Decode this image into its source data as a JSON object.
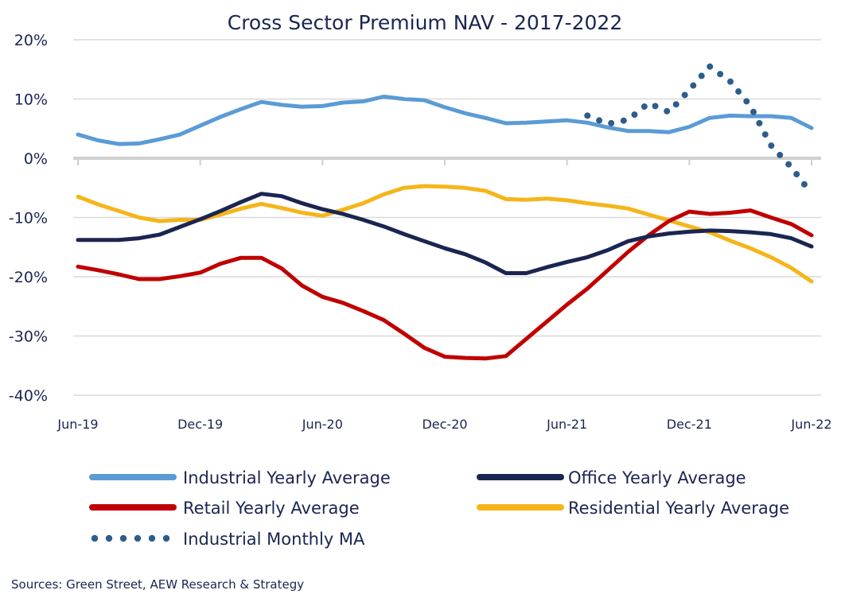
{
  "chart_data": {
    "type": "line",
    "title": "Cross Sector Premium NAV - 2017-2022",
    "y_ticks": [
      "20%",
      "10%",
      "0%",
      "-10%",
      "-20%",
      "-30%",
      "-40%"
    ],
    "y_tick_values": [
      20,
      10,
      0,
      -10,
      -20,
      -30,
      -40
    ],
    "ylim": [
      -40,
      20
    ],
    "x_ticks": [
      "Jun-19",
      "Dec-19",
      "Jun-20",
      "Dec-20",
      "Jun-21",
      "Dec-21",
      "Jun-22"
    ],
    "x_tick_values": [
      0,
      6,
      12,
      18,
      24,
      30,
      36
    ],
    "xlim": [
      0,
      36
    ],
    "grid": true,
    "legend_position": "bottom",
    "series": [
      {
        "name": "Industrial Yearly Average",
        "color": "#5b9bd5",
        "style": "solid",
        "x": [
          0,
          1,
          2,
          3,
          4,
          5,
          6,
          7,
          8,
          9,
          10,
          11,
          12,
          13,
          14,
          15,
          16,
          17,
          18,
          19,
          20,
          21,
          22,
          23,
          24,
          25,
          26,
          27,
          28,
          29,
          30,
          31,
          32,
          33,
          34,
          35,
          36
        ],
        "values": [
          4,
          3,
          2.4,
          2.5,
          3.2,
          4,
          5.5,
          7,
          8.3,
          9.5,
          9,
          8.7,
          8.8,
          9.4,
          9.6,
          10.4,
          10,
          9.8,
          8.6,
          7.6,
          6.8,
          5.9,
          6,
          6.2,
          6.4,
          6,
          5.2,
          4.6,
          4.6,
          4.4,
          5.3,
          6.8,
          7.2,
          7.1,
          7.1,
          6.8,
          5.1
        ]
      },
      {
        "name": "Office Yearly Average",
        "color": "#1b2551",
        "style": "solid",
        "x": [
          0,
          1,
          2,
          3,
          4,
          5,
          6,
          7,
          8,
          9,
          10,
          11,
          12,
          13,
          14,
          15,
          16,
          17,
          18,
          19,
          20,
          21,
          22,
          23,
          24,
          25,
          26,
          27,
          28,
          29,
          30,
          31,
          32,
          33,
          34,
          35,
          36
        ],
        "values": [
          -13.8,
          -13.8,
          -13.8,
          -13.5,
          -12.9,
          -11.6,
          -10.3,
          -8.9,
          -7.4,
          -6,
          -6.4,
          -7.6,
          -8.6,
          -9.4,
          -10.4,
          -11.5,
          -12.8,
          -14,
          -15.2,
          -16.2,
          -17.6,
          -19.4,
          -19.4,
          -18.4,
          -17.5,
          -16.7,
          -15.5,
          -14,
          -13.2,
          -12.7,
          -12.4,
          -12.2,
          -12.3,
          -12.5,
          -12.8,
          -13.5,
          -14.9
        ]
      },
      {
        "name": "Retail Yearly Average",
        "color": "#c00000",
        "style": "solid",
        "x": [
          0,
          1,
          2,
          3,
          4,
          5,
          6,
          7,
          8,
          9,
          10,
          11,
          12,
          13,
          14,
          15,
          16,
          17,
          18,
          19,
          20,
          21,
          22,
          23,
          24,
          25,
          26,
          27,
          28,
          29,
          30,
          31,
          32,
          33,
          34,
          35,
          36
        ],
        "values": [
          -18.3,
          -18.9,
          -19.6,
          -20.4,
          -20.4,
          -19.9,
          -19.3,
          -17.8,
          -16.8,
          -16.8,
          -18.6,
          -21.5,
          -23.4,
          -24.4,
          -25.8,
          -27.3,
          -29.6,
          -32,
          -33.5,
          -33.7,
          -33.8,
          -33.4,
          -30.5,
          -27.6,
          -24.7,
          -22,
          -18.9,
          -15.8,
          -13,
          -10.6,
          -9,
          -9.4,
          -9.2,
          -8.8,
          -10,
          -11.1,
          -13
        ]
      },
      {
        "name": "Residential Yearly Average",
        "color": "#f5b51a",
        "style": "solid",
        "x": [
          0,
          1,
          2,
          3,
          4,
          5,
          6,
          7,
          8,
          9,
          10,
          11,
          12,
          13,
          14,
          15,
          16,
          17,
          18,
          19,
          20,
          21,
          22,
          23,
          24,
          25,
          26,
          27,
          28,
          29,
          30,
          31,
          32,
          33,
          34,
          35,
          36
        ],
        "values": [
          -6.5,
          -7.8,
          -8.9,
          -10,
          -10.6,
          -10.4,
          -10.4,
          -9.5,
          -8.5,
          -7.7,
          -8.4,
          -9.2,
          -9.7,
          -8.7,
          -7.6,
          -6.1,
          -5,
          -4.7,
          -4.8,
          -5,
          -5.5,
          -6.9,
          -7,
          -6.8,
          -7.1,
          -7.6,
          -8,
          -8.5,
          -9.5,
          -10.5,
          -11.5,
          -12.5,
          -13.9,
          -15.2,
          -16.7,
          -18.5,
          -20.8
        ]
      },
      {
        "name": "Industrial Monthly MA",
        "color": "#2e5d8a",
        "style": "dotted",
        "x": [
          25,
          26,
          27,
          28,
          29,
          30,
          31,
          32,
          33,
          34,
          35,
          36
        ],
        "values": [
          7.2,
          5.8,
          6.5,
          9.3,
          7.8,
          11.5,
          15.5,
          13,
          8.8,
          2.2,
          -1.5,
          -6
        ]
      }
    ]
  },
  "source_text": "Sources: Green Street, AEW Research & Strategy"
}
